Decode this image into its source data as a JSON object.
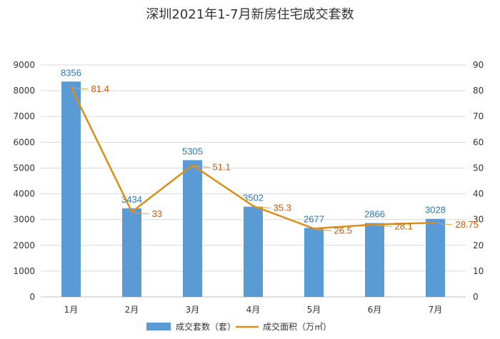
{
  "chart_data": {
    "type": "bar",
    "title": "深圳2021年1-7月新房住宅成交套数",
    "categories": [
      "1月",
      "2月",
      "3月",
      "4月",
      "5月",
      "6月",
      "7月"
    ],
    "series": [
      {
        "name": "成交套数（套）",
        "type": "bar",
        "axis": "left",
        "values": [
          8356,
          3434,
          5305,
          3502,
          2677,
          2866,
          3028
        ],
        "labels": [
          "8356",
          "3434",
          "5305",
          "3502",
          "2677",
          "2866",
          "3028"
        ],
        "color": "#5B9BD5"
      },
      {
        "name": "成交面积（万㎡）",
        "type": "line",
        "axis": "right",
        "values": [
          81.4,
          33,
          51.1,
          35.3,
          26.5,
          28.1,
          28.75
        ],
        "labels": [
          "81.4",
          "33",
          "51.1",
          "35.3",
          "26.5",
          "28.1",
          "28.75"
        ],
        "color": "#D98F1A"
      }
    ],
    "y_left": {
      "min": 0,
      "max": 9000,
      "ticks": [
        "0",
        "1000",
        "2000",
        "3000",
        "4000",
        "5000",
        "6000",
        "7000",
        "8000",
        "9000"
      ]
    },
    "y_right": {
      "min": 0,
      "max": 90,
      "ticks": [
        "0",
        "10",
        "20",
        "30",
        "40",
        "50",
        "60",
        "70",
        "80",
        "90"
      ]
    },
    "grid": true,
    "legend_position": "bottom"
  }
}
